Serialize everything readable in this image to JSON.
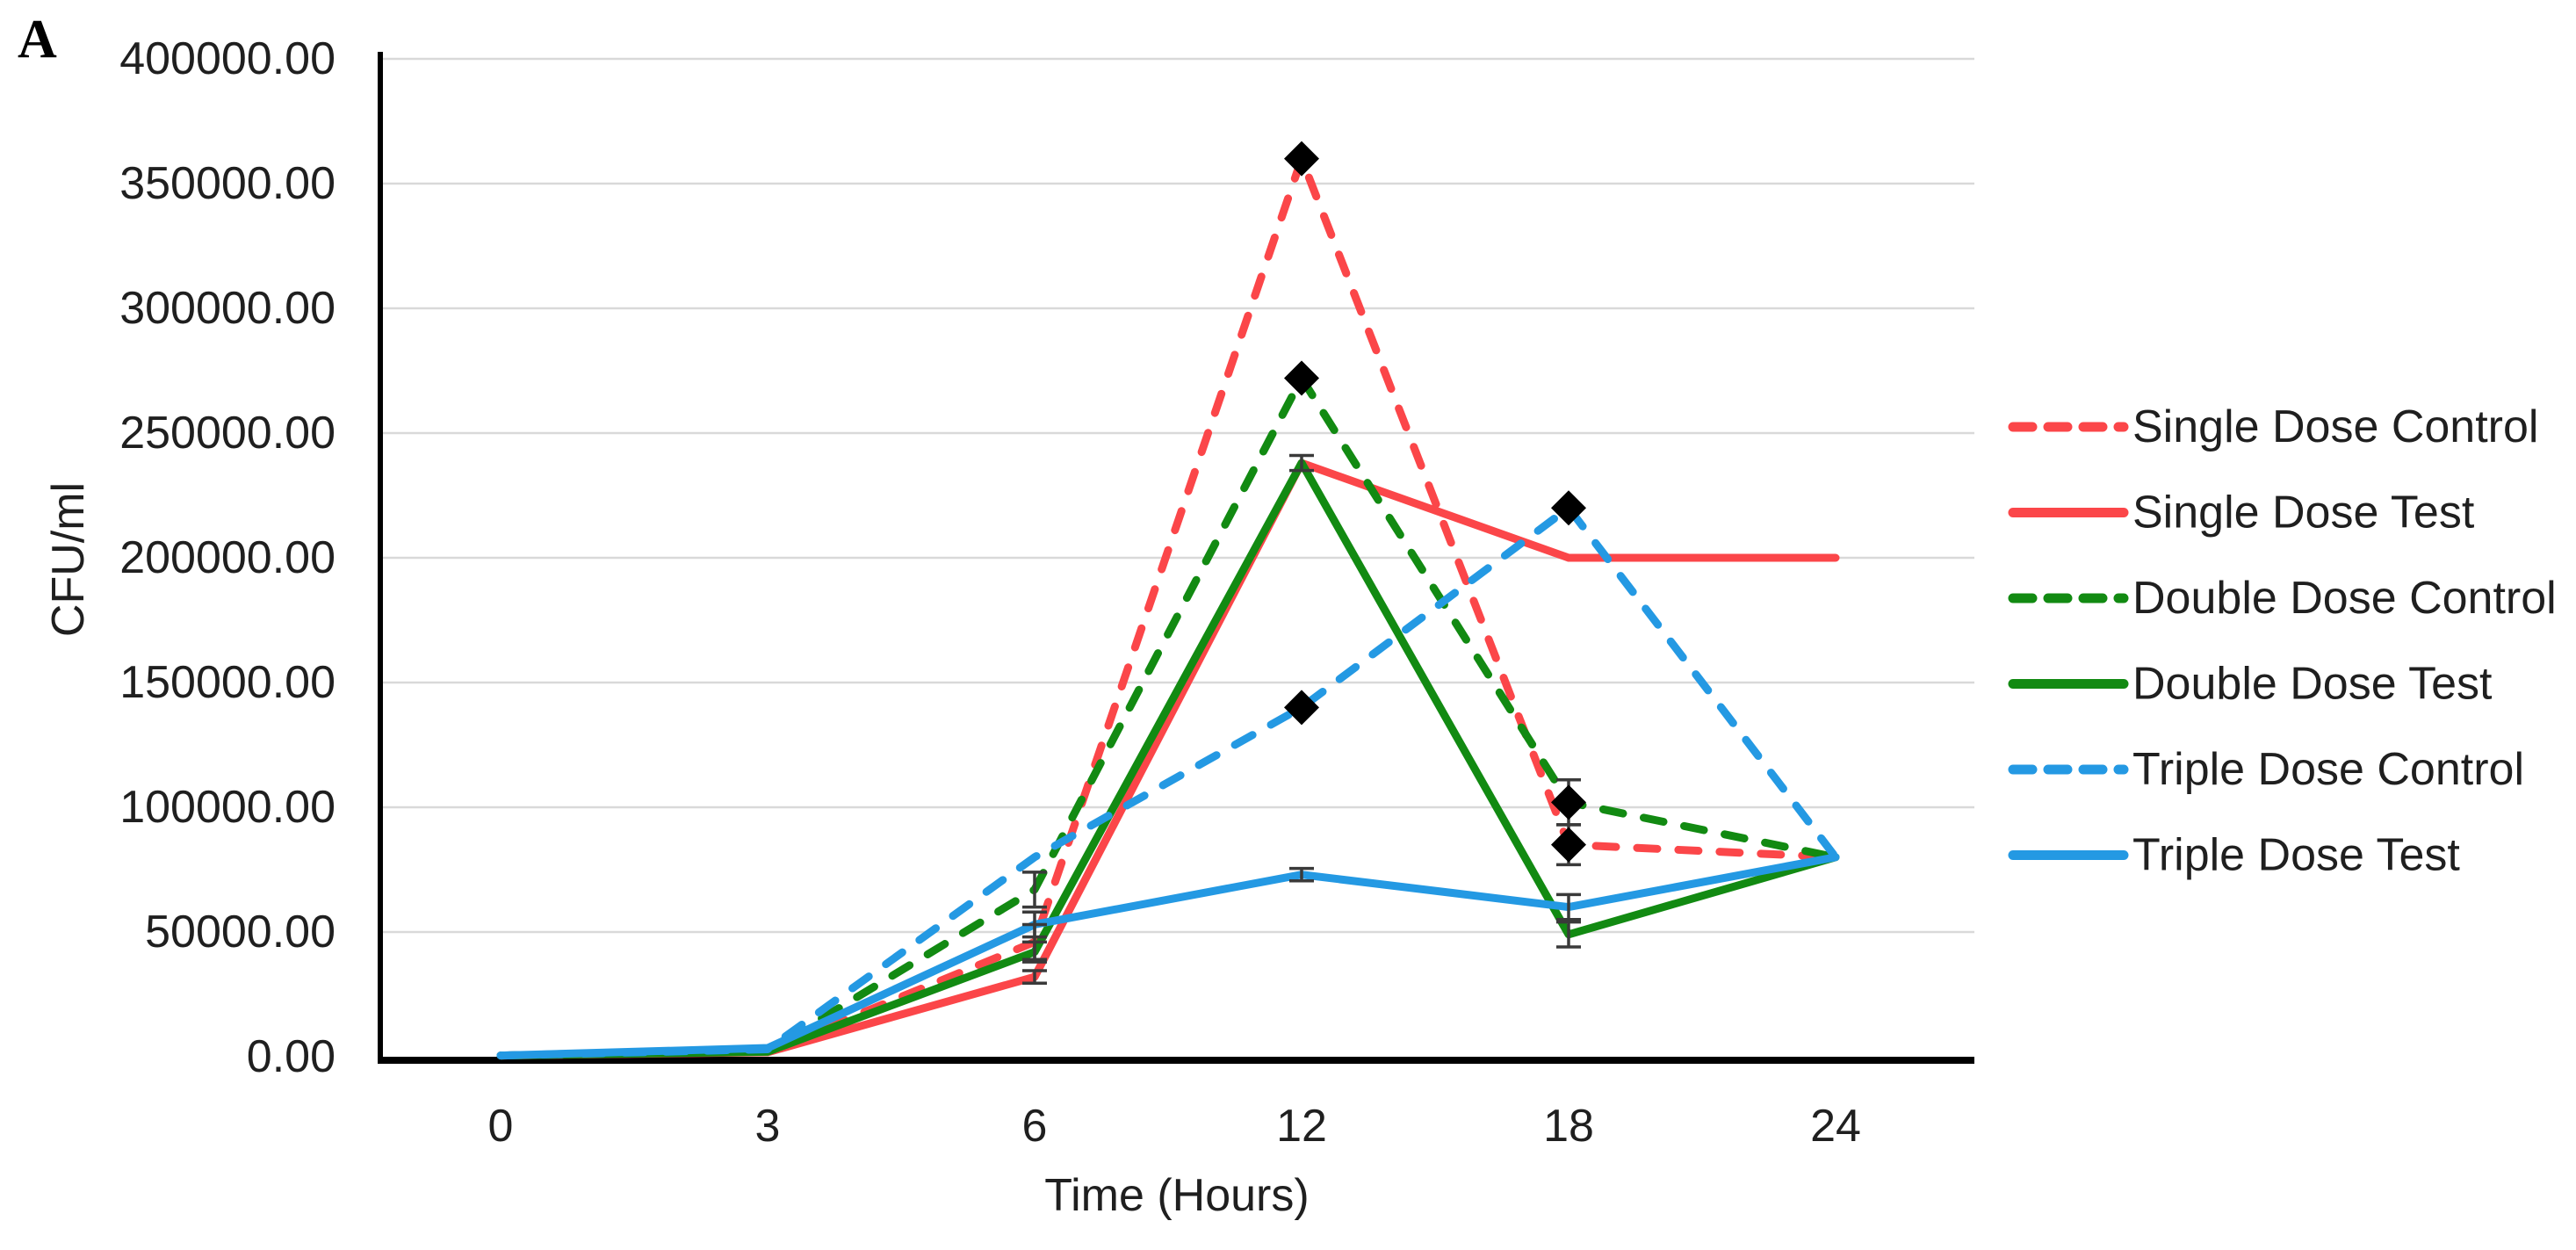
{
  "figure": {
    "panel_label": "A",
    "background_color": "#ffffff",
    "text_color": "#1f1f1f",
    "gridline_color": "#d9d9d9",
    "axis_color": "#000000",
    "error_bar_color": "#3a3a3a",
    "marker_color": "#000000"
  },
  "chart_data": {
    "type": "line",
    "title": "",
    "xlabel": "Time (Hours)",
    "ylabel": "CFU/ml",
    "x_categories": [
      "0",
      "3",
      "6",
      "12",
      "18",
      "24"
    ],
    "y_axis": {
      "min": 0,
      "max": 400000,
      "tick_step": 50000,
      "tick_labels": [
        "0.00",
        "50000.00",
        "100000.00",
        "150000.00",
        "200000.00",
        "250000.00",
        "300000.00",
        "350000.00",
        "400000.00"
      ]
    },
    "grid": "horizontal",
    "legend_position": "right",
    "series": [
      {
        "name": "Single Dose Control",
        "color": "#FB4649",
        "style": "dashed",
        "marker": "diamond",
        "marker_indices": [
          3,
          4
        ],
        "values": [
          500,
          2000,
          46000,
          360000,
          85000,
          80000
        ],
        "errors": [
          null,
          null,
          7000,
          null,
          8000,
          null
        ]
      },
      {
        "name": "Single Dose Test",
        "color": "#FB4649",
        "style": "solid",
        "marker": "none",
        "marker_indices": [],
        "values": [
          500,
          1800,
          32000,
          238000,
          200000,
          200000
        ],
        "errors": [
          null,
          null,
          2500,
          3000,
          null,
          null
        ]
      },
      {
        "name": "Double Dose Control",
        "color": "#128A12",
        "style": "dashed",
        "marker": "diamond",
        "marker_indices": [
          3,
          4
        ],
        "values": [
          500,
          2200,
          67000,
          272000,
          102000,
          80000
        ],
        "errors": [
          null,
          null,
          7000,
          null,
          9000,
          null
        ]
      },
      {
        "name": "Double Dose Test",
        "color": "#128A12",
        "style": "solid",
        "marker": "none",
        "marker_indices": [],
        "values": [
          500,
          2000,
          42000,
          238000,
          49000,
          80000
        ],
        "errors": [
          null,
          null,
          4000,
          null,
          5000,
          null
        ]
      },
      {
        "name": "Triple Dose Control",
        "color": "#2499E3",
        "style": "dashed",
        "marker": "diamond",
        "marker_indices": [
          3,
          4
        ],
        "values": [
          500,
          3000,
          80000,
          140000,
          220000,
          80000
        ],
        "errors": [
          null,
          null,
          null,
          null,
          null,
          null
        ]
      },
      {
        "name": "Triple Dose Test",
        "color": "#2499E3",
        "style": "solid",
        "marker": "none",
        "marker_indices": [],
        "values": [
          500,
          3500,
          53000,
          73000,
          60000,
          80000
        ],
        "errors": [
          null,
          null,
          5000,
          2500,
          5000,
          null
        ]
      }
    ]
  }
}
